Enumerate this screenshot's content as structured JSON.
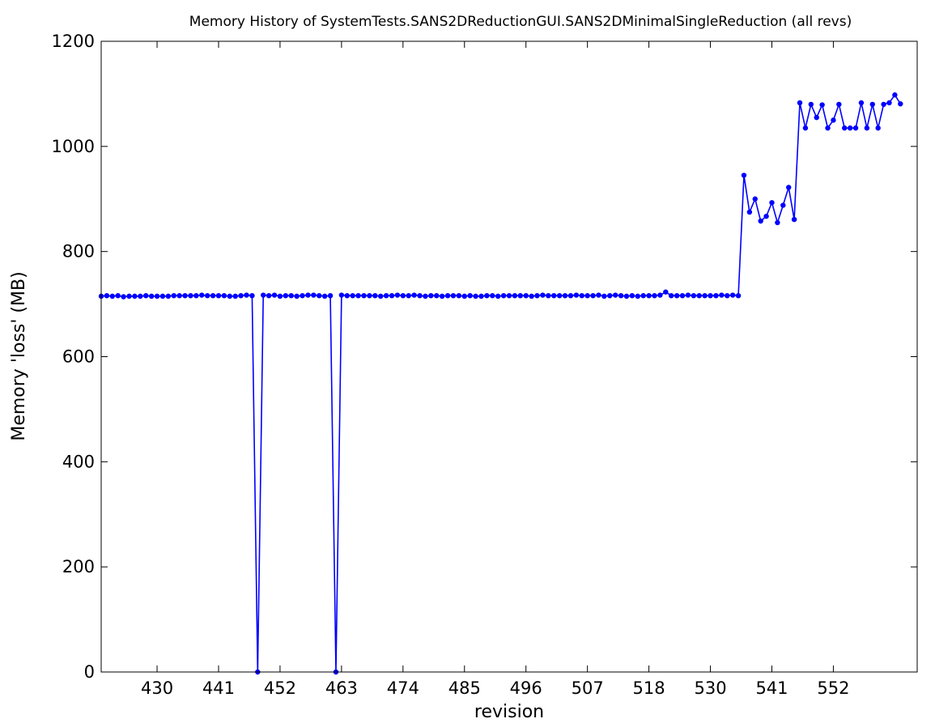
{
  "chart_data": {
    "type": "line",
    "title": "Memory History of SystemTests.SANS2DReductionGUI.SANS2DMinimalSingleReduction (all revs)",
    "xlabel": "revision",
    "ylabel": "Memory 'loss' (MB)",
    "ylim": [
      0,
      1200
    ],
    "y_ticks": [
      0,
      200,
      400,
      600,
      800,
      1000,
      1200
    ],
    "x_tick_labels": [
      "430",
      "441",
      "452",
      "463",
      "474",
      "485",
      "496",
      "507",
      "518",
      "530",
      "541",
      "552"
    ],
    "x_tick_positions": [
      10,
      21,
      32,
      43,
      54,
      65,
      76,
      87,
      98,
      109,
      120,
      131
    ],
    "x_range": [
      0,
      146
    ],
    "grid": false,
    "legend": "none",
    "series": [
      {
        "color": "#0000ff",
        "marker": "circle",
        "values": [
          715,
          716,
          715,
          716,
          714,
          715,
          715,
          715,
          716,
          715,
          715,
          715,
          715,
          716,
          716,
          716,
          716,
          716,
          717,
          716,
          716,
          716,
          716,
          715,
          715,
          716,
          717,
          716,
          0,
          717,
          716,
          717,
          715,
          716,
          716,
          715,
          716,
          717,
          717,
          716,
          715,
          716,
          0,
          717,
          716,
          716,
          716,
          716,
          716,
          716,
          715,
          716,
          716,
          717,
          716,
          716,
          717,
          716,
          715,
          716,
          716,
          715,
          716,
          716,
          716,
          715,
          716,
          715,
          715,
          716,
          716,
          715,
          716,
          716,
          716,
          716,
          716,
          715,
          716,
          717,
          716,
          716,
          716,
          716,
          716,
          717,
          716,
          716,
          716,
          717,
          715,
          716,
          717,
          716,
          715,
          716,
          715,
          716,
          716,
          716,
          717,
          723,
          716,
          716,
          716,
          717,
          716,
          716,
          716,
          716,
          716,
          717,
          716,
          717,
          716,
          945,
          875,
          900,
          858,
          867,
          893,
          855,
          888,
          922,
          861,
          1083,
          1035,
          1080,
          1055,
          1079,
          1035,
          1050,
          1080,
          1035,
          1035,
          1035,
          1083,
          1035,
          1080,
          1035,
          1080,
          1083,
          1098,
          1081
        ]
      }
    ]
  }
}
